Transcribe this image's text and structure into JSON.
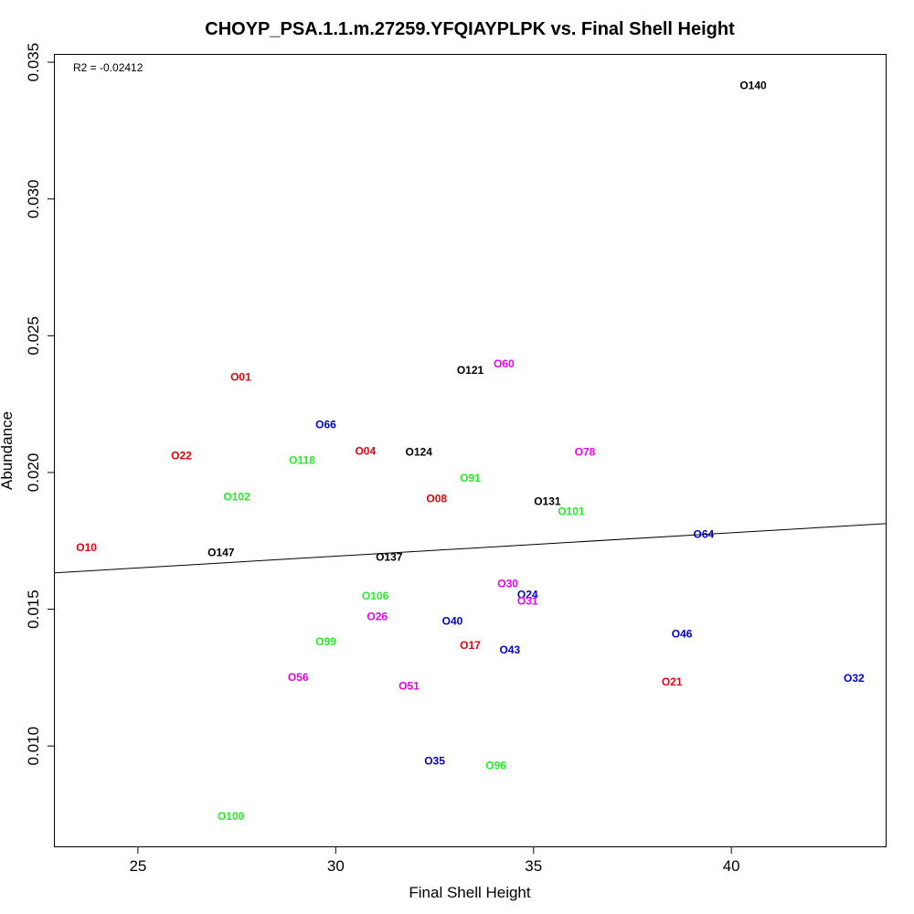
{
  "chart_data": {
    "type": "scatter",
    "title": "CHOYP_PSA.1.1.m.27259.YFQIAYPLPK vs. Final Shell Height",
    "xlabel": "Final Shell Height",
    "ylabel": "Abundance",
    "annotation": "R2 = -0.02412",
    "xlim": [
      22.9,
      43.9
    ],
    "ylim": [
      0.00633,
      0.03527
    ],
    "xticks": [
      25,
      30,
      35,
      40
    ],
    "yticks": [
      0.01,
      0.015,
      0.02,
      0.025,
      0.03,
      0.035
    ],
    "xtick_labels": [
      "25",
      "30",
      "35",
      "40"
    ],
    "ytick_labels": [
      "0.010",
      "0.015",
      "0.020",
      "0.025",
      "0.030",
      "0.035"
    ],
    "grid": false,
    "regression_line": {
      "x": [
        22.9,
        43.9
      ],
      "y": [
        0.01633,
        0.01813
      ]
    },
    "colors": {
      "red": "#e8000b",
      "blue": "#0000d0",
      "green": "#22ee22",
      "magenta": "#ee00ee",
      "black": "#000000"
    },
    "points": [
      {
        "label": "O140",
        "x": 40.55,
        "y": 0.03415,
        "color": "black"
      },
      {
        "label": "O60",
        "x": 34.25,
        "y": 0.02397,
        "color": "magenta"
      },
      {
        "label": "O121",
        "x": 33.4,
        "y": 0.02374,
        "color": "black"
      },
      {
        "label": "O01",
        "x": 27.6,
        "y": 0.02349,
        "color": "red"
      },
      {
        "label": "O66",
        "x": 29.75,
        "y": 0.02175,
        "color": "blue"
      },
      {
        "label": "O04",
        "x": 30.75,
        "y": 0.02079,
        "color": "red"
      },
      {
        "label": "O124",
        "x": 32.1,
        "y": 0.02075,
        "color": "black"
      },
      {
        "label": "O78",
        "x": 36.3,
        "y": 0.02075,
        "color": "magenta"
      },
      {
        "label": "O22",
        "x": 26.1,
        "y": 0.02062,
        "color": "red"
      },
      {
        "label": "O118",
        "x": 29.15,
        "y": 0.02045,
        "color": "green"
      },
      {
        "label": "O91",
        "x": 33.4,
        "y": 0.01979,
        "color": "green"
      },
      {
        "label": "O102",
        "x": 27.5,
        "y": 0.01912,
        "color": "green"
      },
      {
        "label": "O131",
        "x": 35.35,
        "y": 0.01895,
        "color": "black"
      },
      {
        "label": "O08",
        "x": 32.55,
        "y": 0.01904,
        "color": "red"
      },
      {
        "label": "O101",
        "x": 35.95,
        "y": 0.01858,
        "color": "green"
      },
      {
        "label": "O64",
        "x": 39.3,
        "y": 0.01775,
        "color": "blue"
      },
      {
        "label": "O10",
        "x": 23.7,
        "y": 0.01725,
        "color": "red"
      },
      {
        "label": "O147",
        "x": 27.1,
        "y": 0.01708,
        "color": "black"
      },
      {
        "label": "O137",
        "x": 31.35,
        "y": 0.01691,
        "color": "black"
      },
      {
        "label": "O30",
        "x": 34.35,
        "y": 0.01594,
        "color": "magenta"
      },
      {
        "label": "O24",
        "x": 34.85,
        "y": 0.01553,
        "color": "blue"
      },
      {
        "label": "O106",
        "x": 31.0,
        "y": 0.01548,
        "color": "green"
      },
      {
        "label": "O31",
        "x": 34.85,
        "y": 0.01531,
        "color": "magenta"
      },
      {
        "label": "O26",
        "x": 31.05,
        "y": 0.01473,
        "color": "magenta"
      },
      {
        "label": "O40",
        "x": 32.95,
        "y": 0.01456,
        "color": "blue"
      },
      {
        "label": "O46",
        "x": 38.75,
        "y": 0.0141,
        "color": "blue"
      },
      {
        "label": "O99",
        "x": 29.75,
        "y": 0.01381,
        "color": "green"
      },
      {
        "label": "O17",
        "x": 33.4,
        "y": 0.01368,
        "color": "red"
      },
      {
        "label": "O43",
        "x": 34.4,
        "y": 0.01352,
        "color": "blue"
      },
      {
        "label": "O56",
        "x": 29.05,
        "y": 0.01252,
        "color": "magenta"
      },
      {
        "label": "O32",
        "x": 43.1,
        "y": 0.01248,
        "color": "blue"
      },
      {
        "label": "O21",
        "x": 38.5,
        "y": 0.01235,
        "color": "red"
      },
      {
        "label": "O51",
        "x": 31.85,
        "y": 0.01219,
        "color": "magenta"
      },
      {
        "label": "O35",
        "x": 32.5,
        "y": 0.00946,
        "color": "blue"
      },
      {
        "label": "O96",
        "x": 34.05,
        "y": 0.00929,
        "color": "green"
      },
      {
        "label": "O100",
        "x": 27.35,
        "y": 0.00744,
        "color": "green"
      }
    ]
  }
}
